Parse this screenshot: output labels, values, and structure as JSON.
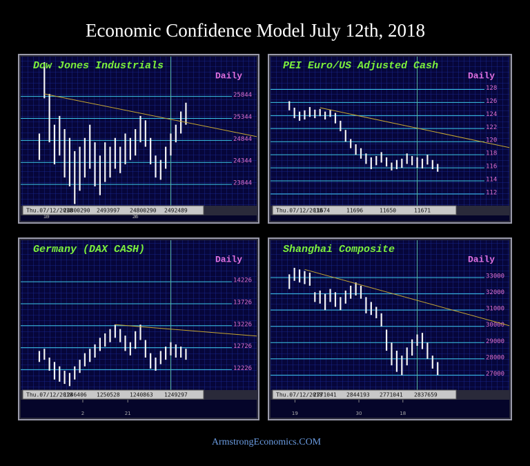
{
  "header": {
    "title": "Economic Confidence Model July 12th, 2018"
  },
  "footer": {
    "text": "ArmstrongEconomics.COM"
  },
  "chart_data": [
    {
      "type": "ohlc",
      "title": "Dow Jones Industrials",
      "period": "Daily",
      "status": [
        "Thu.07/12/2018",
        "24800290",
        "2493997",
        "24800290",
        "2492489"
      ],
      "high": [
        25000,
        26620,
        25900,
        25200,
        25400,
        25100,
        24900,
        24600,
        24700,
        24900,
        25200,
        24800,
        24500,
        24800,
        24700,
        24900,
        24700,
        25000,
        24900,
        25100,
        25400,
        25300,
        24900,
        24500,
        24400,
        24700,
        25000,
        25200,
        25500,
        25700
      ],
      "low": [
        24400,
        25800,
        24800,
        24300,
        24500,
        24000,
        23800,
        23400,
        23700,
        24000,
        24200,
        23800,
        23600,
        23900,
        24000,
        24200,
        24100,
        24300,
        24400,
        24500,
        24800,
        24700,
        24300,
        24000,
        23950,
        24200,
        24500,
        24800,
        25000,
        25200
      ],
      "xlim": [
        -3,
        43
      ],
      "ylim": [
        23360,
        26700
      ],
      "yticks": [
        25844,
        25344,
        24844,
        24344,
        23844
      ],
      "xticks": [
        {
          "value": 1.4,
          "label": "19"
        },
        {
          "value": 19,
          "label": "26"
        }
      ],
      "marker_x": 26,
      "trend": {
        "x": [
          1,
          43
        ],
        "y": [
          25900,
          24930
        ]
      }
    },
    {
      "type": "ohlc",
      "title": "PEI Euro/US Adjusted Cash",
      "period": "Daily",
      "status": [
        "Thu.07/12/2018",
        "11674",
        "11696",
        "11650",
        "11671"
      ],
      "high": [
        126.2,
        125.2,
        124.6,
        124.8,
        125.3,
        124.9,
        125.0,
        124.6,
        124.9,
        124.4,
        123.2,
        121.8,
        120.4,
        119.6,
        119.0,
        118.2,
        117.6,
        117.8,
        118.4,
        117.6,
        116.8,
        117.2,
        117.4,
        118.2,
        117.8,
        117.6,
        117.4,
        118.0,
        117.2,
        116.6
      ],
      "low": [
        124.8,
        123.6,
        123.2,
        123.4,
        123.8,
        123.6,
        123.9,
        123.4,
        123.8,
        122.8,
        121.6,
        120.0,
        119.0,
        118.0,
        117.4,
        116.6,
        115.8,
        116.4,
        116.8,
        116.2,
        115.6,
        115.8,
        116.0,
        116.6,
        116.4,
        116.0,
        115.9,
        116.5,
        115.8,
        115.4
      ],
      "xlim": [
        -3,
        43
      ],
      "ylim": [
        110.2,
        132.7
      ],
      "yticks": [
        128,
        126,
        124,
        122,
        120,
        118,
        116,
        114,
        112
      ],
      "marker_x": 25,
      "trend": {
        "x": [
          6,
          43
        ],
        "y": [
          125.2,
          119.1
        ]
      }
    },
    {
      "type": "ohlc",
      "title": "Germany (DAX CASH)",
      "period": "Daily",
      "status": [
        "Thu.07/12/2018",
        "1246406",
        "1250528",
        "1240863",
        "1249297"
      ],
      "high": [
        12650,
        12700,
        12500,
        12400,
        12300,
        12200,
        12150,
        12300,
        12450,
        12600,
        12700,
        12800,
        12950,
        13050,
        13150,
        13250,
        13150,
        13000,
        12850,
        13100,
        13250,
        12900,
        12600,
        12500,
        12650,
        12750,
        12850,
        12800,
        12750,
        12700
      ],
      "low": [
        12400,
        12450,
        12200,
        12000,
        11950,
        11900,
        11850,
        12000,
        12150,
        12300,
        12400,
        12500,
        12650,
        12750,
        12850,
        12950,
        12850,
        12650,
        12550,
        12700,
        12900,
        12500,
        12250,
        12200,
        12350,
        12450,
        12550,
        12500,
        12500,
        12450
      ],
      "xlim": [
        -3,
        43
      ],
      "ylim": [
        11760,
        15125
      ],
      "yticks": [
        14226,
        13726,
        13226,
        12726,
        12226
      ],
      "xticks": [
        {
          "value": 8.6,
          "label": "2"
        },
        {
          "value": 17.5,
          "label": "21"
        }
      ],
      "marker_x": 26,
      "trend": {
        "x": [
          15,
          43
        ],
        "y": [
          13250,
          12990
        ]
      }
    },
    {
      "type": "ohlc",
      "title": "Shanghai Composite",
      "period": "Daily",
      "status": [
        "Thu.07/12/2018",
        "2771041",
        "2844193",
        "2771041",
        "2837659"
      ],
      "high": [
        33200,
        33600,
        33500,
        33400,
        33300,
        32100,
        32200,
        32000,
        32300,
        32100,
        31800,
        32200,
        32500,
        32700,
        32500,
        31800,
        31500,
        31200,
        30800,
        29800,
        29000,
        28500,
        28200,
        28700,
        29200,
        29500,
        29600,
        29000,
        28200,
        27800
      ],
      "low": [
        32300,
        32800,
        32700,
        32600,
        32500,
        31500,
        31400,
        31000,
        31500,
        31200,
        31000,
        31400,
        31700,
        31900,
        31700,
        30800,
        30700,
        30500,
        30000,
        28500,
        27600,
        27200,
        27000,
        27600,
        28200,
        28800,
        28600,
        28000,
        27400,
        27000
      ],
      "xlim": [
        -3,
        43
      ],
      "ylim": [
        26080,
        35170
      ],
      "yticks": [
        33000,
        32000,
        31000,
        30000,
        29000,
        28000,
        27000
      ],
      "xticks": [
        {
          "value": 1.1,
          "label": "19"
        },
        {
          "value": 13.6,
          "label": "30"
        },
        {
          "value": 22.2,
          "label": "18"
        }
      ],
      "marker_x": 25,
      "trend": {
        "x": [
          3,
          43
        ],
        "y": [
          33500,
          30040
        ]
      }
    }
  ]
}
